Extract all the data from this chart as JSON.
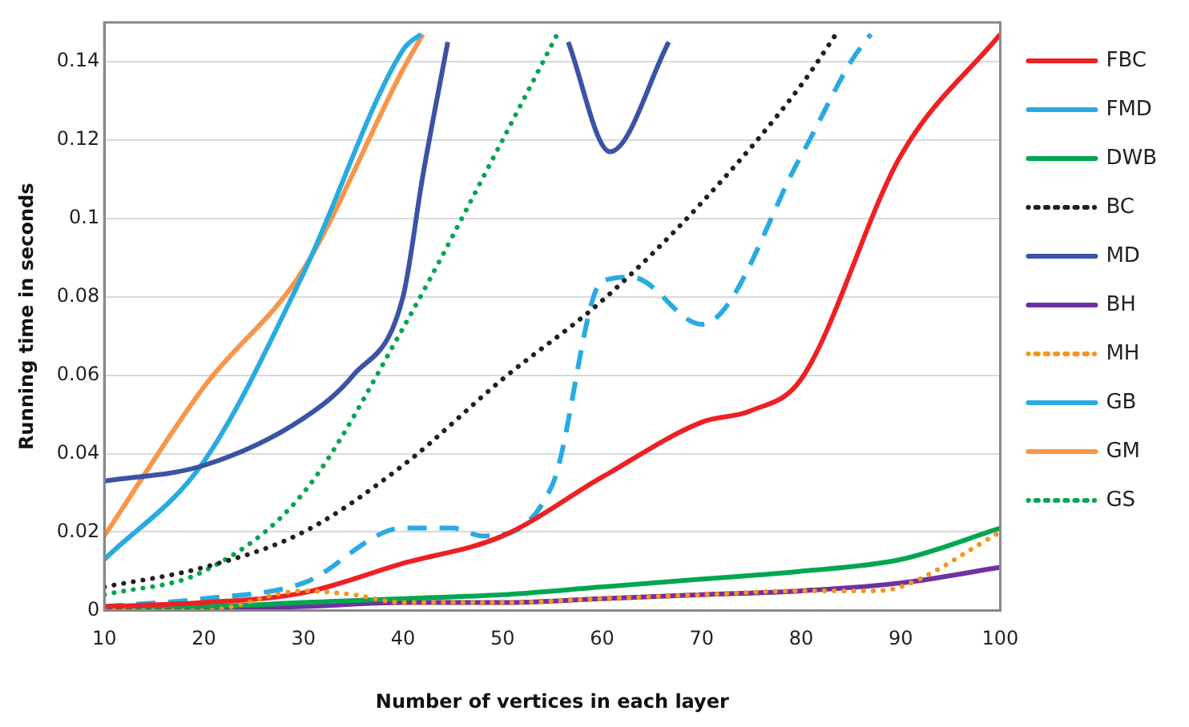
{
  "chart_data": {
    "type": "line",
    "xlabel": "Number of vertices in each layer",
    "ylabel": "Running time in seconds",
    "xlim": [
      10,
      100
    ],
    "xticks": [
      10,
      20,
      30,
      40,
      50,
      60,
      70,
      80,
      90,
      100
    ],
    "ylim": [
      0,
      0.15
    ],
    "yticks": [
      0,
      0.02,
      0.04,
      0.06,
      0.08,
      0.1,
      0.12,
      0.14
    ],
    "grid": "y",
    "legend": "right",
    "marker": "none",
    "series": [
      {
        "name": "FBC",
        "color": "#ee2024",
        "line_style": "solid",
        "x": [
          10,
          20,
          30,
          40,
          50,
          60,
          70,
          75,
          80,
          90,
          100
        ],
        "values": [
          0.001,
          0.002,
          0.0045,
          0.012,
          0.019,
          0.034,
          0.048,
          0.051,
          0.059,
          0.116,
          0.147
        ]
      },
      {
        "name": "FMD",
        "color": "#29abe2",
        "line_style": "dashed",
        "x": [
          10,
          20,
          30,
          40,
          45,
          48,
          55,
          60,
          63,
          70,
          80,
          85,
          87
        ],
        "values": [
          0.001,
          0.003,
          0.007,
          0.021,
          0.021,
          0.019,
          0.032,
          0.084,
          0.085,
          0.073,
          0.116,
          0.14,
          0.147
        ]
      },
      {
        "name": "DWB",
        "color": "#00a651",
        "line_style": "solid",
        "x": [
          10,
          20,
          30,
          40,
          50,
          60,
          70,
          80,
          90,
          100
        ],
        "values": [
          0.001,
          0.001,
          0.002,
          0.003,
          0.004,
          0.006,
          0.008,
          0.01,
          0.013,
          0.021
        ]
      },
      {
        "name": "BC",
        "color": "#231f20",
        "line_style": "dotted",
        "x": [
          10,
          20,
          30,
          40,
          50,
          60,
          70,
          80,
          83.5
        ],
        "values": [
          0.006,
          0.011,
          0.02,
          0.037,
          0.059,
          0.079,
          0.104,
          0.134,
          0.147
        ]
      },
      {
        "name": "MD",
        "color": "#3a53a4",
        "line_style": "solid",
        "x": [
          10,
          20,
          30,
          35,
          40,
          42,
          44.5,
          50,
          56.6,
          60.8,
          66.7
        ],
        "values": [
          0.033,
          0.037,
          0.049,
          0.06,
          0.08,
          0.111,
          0.145,
          null,
          0.145,
          0.117,
          0.145
        ]
      },
      {
        "name": "BH",
        "color": "#7030a0",
        "line_style": "solid",
        "x": [
          10,
          20,
          30,
          40,
          50,
          60,
          70,
          80,
          90,
          100
        ],
        "values": [
          0,
          0.0005,
          0.001,
          0.002,
          0.002,
          0.003,
          0.004,
          0.005,
          0.007,
          0.011
        ]
      },
      {
        "name": "MH",
        "color": "#f7931e",
        "line_style": "dotted",
        "x": [
          10,
          20,
          30,
          35,
          40,
          50,
          60,
          70,
          80,
          87,
          90,
          100
        ],
        "values": [
          0,
          0,
          0.005,
          0.004,
          0.002,
          0.002,
          0.003,
          0.004,
          0.005,
          0.005,
          0.006,
          0.02
        ]
      },
      {
        "name": "GB",
        "color": "#29abe2",
        "line_style": "solid",
        "x": [
          10,
          20,
          30,
          40,
          41.8
        ],
        "values": [
          0.013,
          0.038,
          0.086,
          0.143,
          0.147
        ]
      },
      {
        "name": "GM",
        "color": "#f7964a",
        "line_style": "solid",
        "x": [
          10,
          20,
          30,
          40,
          42
        ],
        "values": [
          0.019,
          0.057,
          0.087,
          0.138,
          0.147
        ]
      },
      {
        "name": "GS",
        "color": "#00a651",
        "line_style": "dotted",
        "x": [
          10,
          20,
          30,
          40,
          50,
          55.5
        ],
        "values": [
          0.004,
          0.01,
          0.03,
          0.072,
          0.12,
          0.147
        ]
      }
    ]
  }
}
